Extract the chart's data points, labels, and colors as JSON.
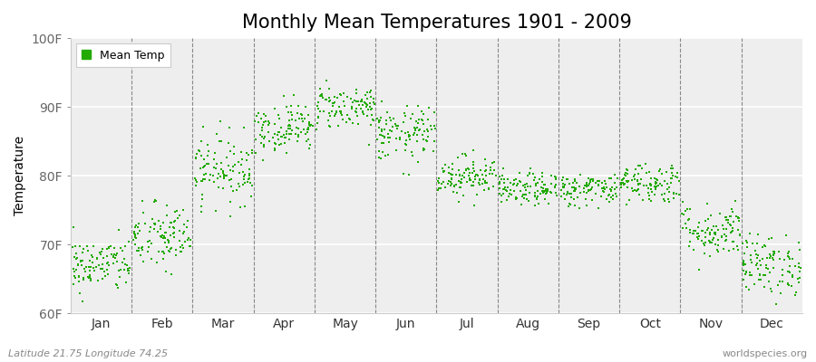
{
  "title": "Monthly Mean Temperatures 1901 - 2009",
  "ylabel": "Temperature",
  "xlabel_bottom_left": "Latitude 21.75 Longitude 74.25",
  "xlabel_bottom_right": "worldspecies.org",
  "legend_label": "Mean Temp",
  "dot_color": "#22aa00",
  "background_color": "#eeeeee",
  "figure_bg": "#ffffff",
  "ylim": [
    60,
    100
  ],
  "yticks": [
    60,
    70,
    80,
    90,
    100
  ],
  "ytick_labels": [
    "60F",
    "70F",
    "80F",
    "90F",
    "100F"
  ],
  "months": [
    "Jan",
    "Feb",
    "Mar",
    "Apr",
    "May",
    "Jun",
    "Jul",
    "Aug",
    "Sep",
    "Oct",
    "Nov",
    "Dec"
  ],
  "month_means": [
    67,
    71,
    81,
    87,
    90,
    86,
    80,
    78,
    78,
    79,
    72,
    67
  ],
  "month_stds": [
    2.0,
    2.5,
    2.5,
    1.8,
    1.6,
    2.0,
    1.5,
    1.2,
    1.2,
    1.5,
    2.0,
    2.2
  ],
  "n_points": 109,
  "title_fontsize": 15,
  "axis_label_fontsize": 10,
  "tick_fontsize": 10,
  "legend_fontsize": 9,
  "dot_size": 3,
  "dot_marker": "s"
}
